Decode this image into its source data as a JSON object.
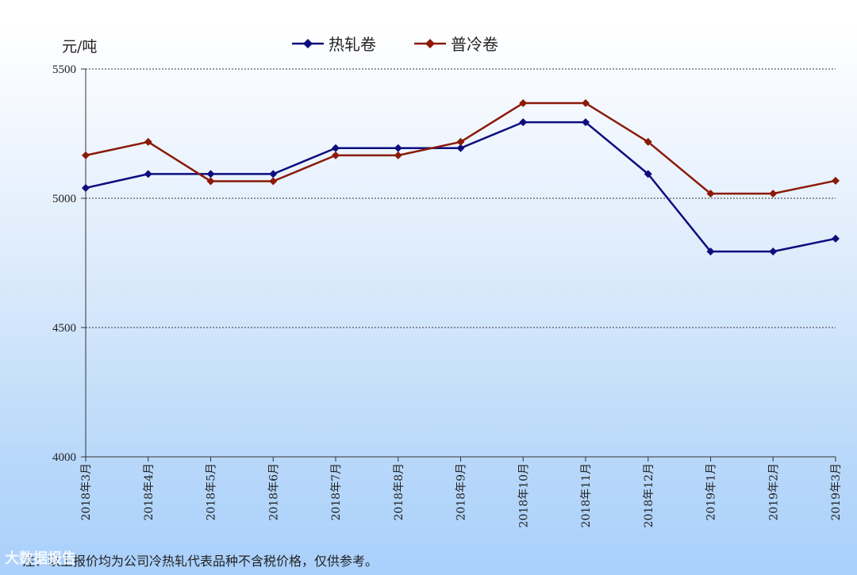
{
  "unit": "元/吨",
  "note": "注：以上报价均为公司冷热轧代表品种不含税价格，仅供参考。",
  "watermark": "大数据报告",
  "chart_data": {
    "type": "line",
    "categories": [
      "2018年3月",
      "2018年4月",
      "2018年5月",
      "2018年6月",
      "2018年7月",
      "2018年8月",
      "2018年9月",
      "2018年10月",
      "2018年11月",
      "2018年12月",
      "2019年1月",
      "2019年2月",
      "2019年3月"
    ],
    "series": [
      {
        "name": "热轧卷",
        "color": "#0d0d7e",
        "values": [
          5040,
          5094,
          5094,
          5094,
          5194,
          5194,
          5194,
          5294,
          5294,
          5094,
          4794,
          4794,
          4844
        ]
      },
      {
        "name": "普冷卷",
        "color": "#8b1a08",
        "values": [
          5166,
          5218,
          5066,
          5066,
          5166,
          5166,
          5218,
          5368,
          5368,
          5218,
          5018,
          5018,
          5068
        ]
      }
    ],
    "ylim": [
      4000,
      5500
    ],
    "yticks": [
      4000,
      4500,
      5000,
      5500
    ],
    "grid": true,
    "legend": "top-center"
  }
}
